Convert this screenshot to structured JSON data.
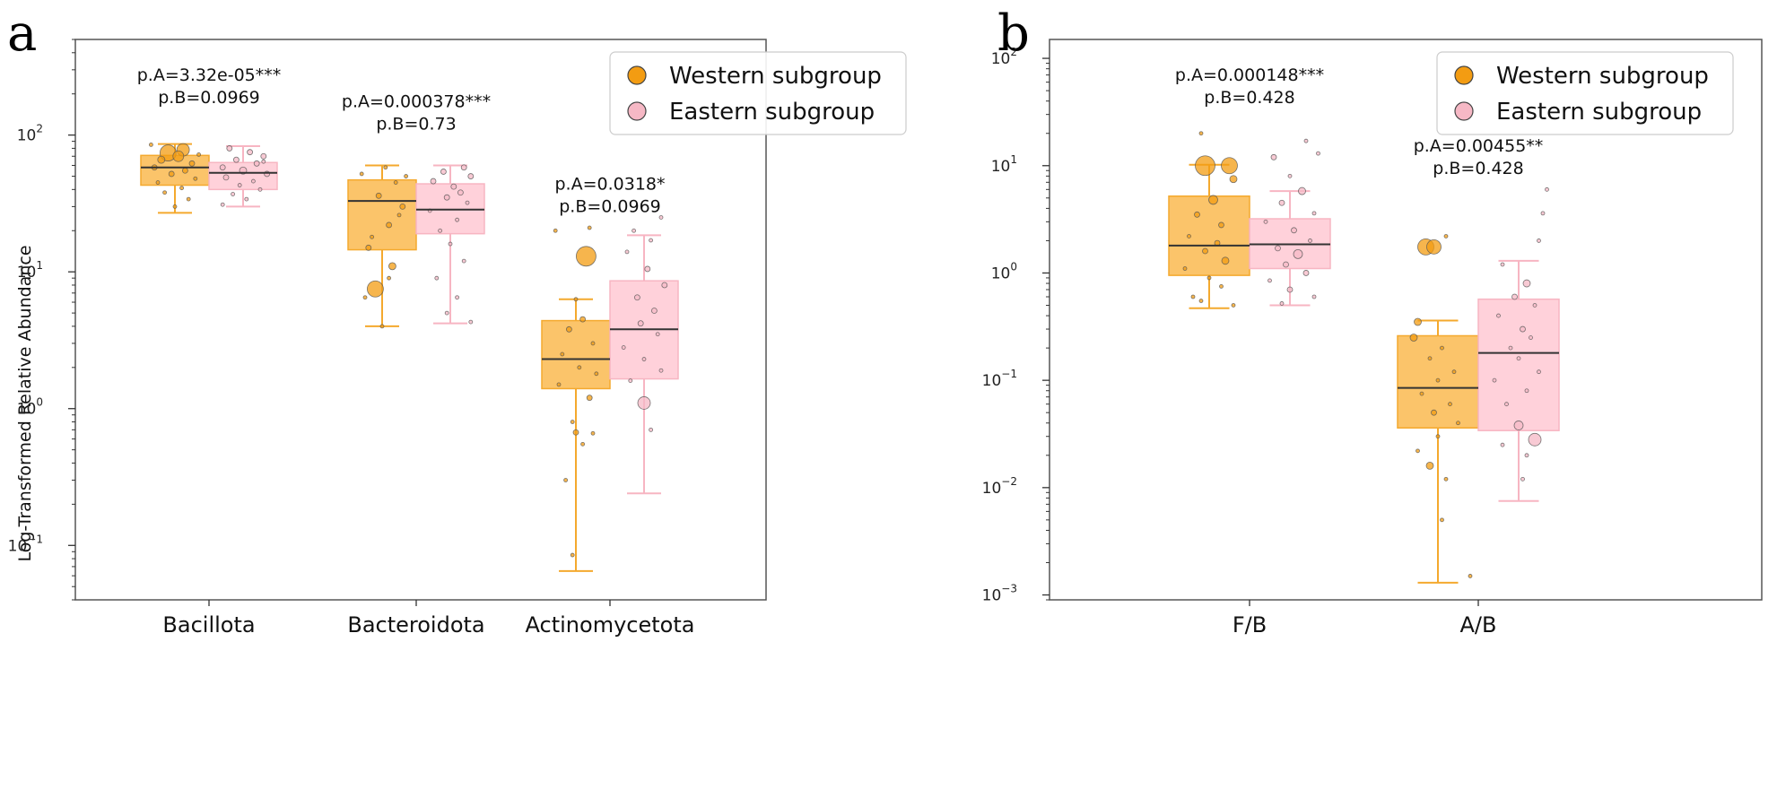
{
  "chart_data": [
    {
      "panel": "a",
      "type": "box",
      "yscale": "log",
      "ylim": [
        0.04,
        500
      ],
      "ylabel": "Log-Transformed Relative Abundance",
      "yticks": [
        {
          "v": 0.1,
          "mant": "10",
          "exp": "−1"
        },
        {
          "v": 1,
          "mant": "10",
          "exp": "0"
        },
        {
          "v": 10,
          "mant": "10",
          "exp": "1"
        },
        {
          "v": 100,
          "mant": "10",
          "exp": "2"
        }
      ],
      "categories": [
        "Bacillota",
        "Bacteroidota",
        "Actinomycetota"
      ],
      "legend": [
        "Western subgroup",
        "Eastern subgroup"
      ],
      "pvals": [
        {
          "a": "p.A=3.32e-05***",
          "b": "p.B=0.0969",
          "y": 250
        },
        {
          "a": "p.A=0.000378***",
          "b": "p.B=0.73",
          "y": 160
        },
        {
          "a": "p.A=0.0318*",
          "b": "p.B=0.0969",
          "y": 40
        }
      ],
      "boxes": [
        {
          "cat": 0,
          "grp": 0,
          "wlo": 27,
          "q1": 43,
          "med": 58,
          "q3": 71,
          "whi": 86
        },
        {
          "cat": 0,
          "grp": 1,
          "wlo": 30,
          "q1": 40,
          "med": 53,
          "q3": 63,
          "whi": 83
        },
        {
          "cat": 1,
          "grp": 0,
          "wlo": 4.0,
          "q1": 14.5,
          "med": 33,
          "q3": 47,
          "whi": 60
        },
        {
          "cat": 1,
          "grp": 1,
          "wlo": 4.2,
          "q1": 19,
          "med": 28.5,
          "q3": 44,
          "whi": 60
        },
        {
          "cat": 2,
          "grp": 0,
          "wlo": 0.065,
          "q1": 1.4,
          "med": 2.3,
          "q3": 4.4,
          "whi": 6.3
        },
        {
          "cat": 2,
          "grp": 1,
          "wlo": 0.24,
          "q1": 1.65,
          "med": 3.8,
          "q3": 8.6,
          "whi": 18.5
        }
      ],
      "points": [
        [
          0,
          0,
          0.12,
          78,
          7
        ],
        [
          0,
          0,
          -0.1,
          74,
          9
        ],
        [
          0,
          0,
          0.05,
          70,
          6
        ],
        [
          0,
          0,
          -0.2,
          66,
          4
        ],
        [
          0,
          0,
          0.25,
          62,
          3
        ],
        [
          0,
          0,
          -0.3,
          58,
          3
        ],
        [
          0,
          0,
          0.15,
          55,
          3
        ],
        [
          0,
          0,
          -0.05,
          52,
          3
        ],
        [
          0,
          0,
          0.3,
          48,
          2
        ],
        [
          0,
          0,
          -0.25,
          45,
          2
        ],
        [
          0,
          0,
          0.1,
          41,
          2
        ],
        [
          0,
          0,
          -0.15,
          38,
          2
        ],
        [
          0,
          0,
          0.2,
          34,
          2
        ],
        [
          0,
          0,
          0.0,
          30,
          2
        ],
        [
          0,
          0,
          -0.35,
          85,
          2
        ],
        [
          0,
          0,
          0.35,
          72,
          2
        ],
        [
          0,
          1,
          -0.2,
          80,
          3
        ],
        [
          0,
          1,
          0.1,
          75,
          3
        ],
        [
          0,
          1,
          0.3,
          70,
          3
        ],
        [
          0,
          1,
          -0.1,
          66,
          3
        ],
        [
          0,
          1,
          0.2,
          62,
          3
        ],
        [
          0,
          1,
          -0.3,
          58,
          3
        ],
        [
          0,
          1,
          0.0,
          55,
          4
        ],
        [
          0,
          1,
          0.35,
          52,
          3
        ],
        [
          0,
          1,
          -0.25,
          49,
          3
        ],
        [
          0,
          1,
          0.15,
          46,
          2
        ],
        [
          0,
          1,
          -0.05,
          43,
          2
        ],
        [
          0,
          1,
          0.25,
          40,
          2
        ],
        [
          0,
          1,
          -0.15,
          37,
          2
        ],
        [
          0,
          1,
          0.05,
          34,
          2
        ],
        [
          0,
          1,
          -0.3,
          31,
          2
        ],
        [
          0,
          1,
          0.3,
          64,
          2
        ],
        [
          1,
          0,
          -0.1,
          7.5,
          9
        ],
        [
          1,
          0,
          0.15,
          11,
          4
        ],
        [
          1,
          0,
          -0.2,
          15,
          3
        ],
        [
          1,
          0,
          0.1,
          22,
          3
        ],
        [
          1,
          0,
          0.3,
          30,
          3
        ],
        [
          1,
          0,
          -0.05,
          36,
          3
        ],
        [
          1,
          0,
          0.2,
          45,
          2
        ],
        [
          1,
          0,
          -0.3,
          52,
          2
        ],
        [
          1,
          0,
          0.05,
          58,
          2
        ],
        [
          1,
          0,
          0.25,
          26,
          2
        ],
        [
          1,
          0,
          -0.15,
          18,
          2
        ],
        [
          1,
          0,
          0.1,
          9,
          2
        ],
        [
          1,
          0,
          -0.25,
          6.5,
          2
        ],
        [
          1,
          0,
          0.0,
          4.0,
          2
        ],
        [
          1,
          0,
          0.35,
          50,
          2
        ],
        [
          1,
          1,
          0.2,
          58,
          3
        ],
        [
          1,
          1,
          -0.1,
          54,
          3
        ],
        [
          1,
          1,
          0.3,
          50,
          3
        ],
        [
          1,
          1,
          -0.25,
          46,
          3
        ],
        [
          1,
          1,
          0.05,
          42,
          3
        ],
        [
          1,
          1,
          0.15,
          38,
          3
        ],
        [
          1,
          1,
          -0.05,
          35,
          3
        ],
        [
          1,
          1,
          0.25,
          32,
          2
        ],
        [
          1,
          1,
          -0.3,
          28,
          2
        ],
        [
          1,
          1,
          0.1,
          24,
          2
        ],
        [
          1,
          1,
          -0.15,
          20,
          2
        ],
        [
          1,
          1,
          0.0,
          16,
          2
        ],
        [
          1,
          1,
          0.2,
          12,
          2
        ],
        [
          1,
          1,
          -0.2,
          9,
          2
        ],
        [
          1,
          1,
          0.1,
          6.5,
          2
        ],
        [
          1,
          1,
          -0.05,
          5.0,
          2
        ],
        [
          1,
          1,
          0.3,
          4.3,
          2
        ],
        [
          2,
          0,
          0.15,
          13,
          11
        ],
        [
          2,
          0,
          -0.3,
          20,
          2
        ],
        [
          2,
          0,
          0.2,
          21,
          2
        ],
        [
          2,
          0,
          0.0,
          6.3,
          2
        ],
        [
          2,
          0,
          0.1,
          4.5,
          3
        ],
        [
          2,
          0,
          -0.1,
          3.8,
          3
        ],
        [
          2,
          0,
          0.25,
          3.0,
          2
        ],
        [
          2,
          0,
          -0.2,
          2.5,
          2
        ],
        [
          2,
          0,
          0.05,
          2.0,
          2
        ],
        [
          2,
          0,
          0.3,
          1.8,
          2
        ],
        [
          2,
          0,
          -0.25,
          1.5,
          2
        ],
        [
          2,
          0,
          0.2,
          1.2,
          3
        ],
        [
          2,
          0,
          -0.05,
          0.8,
          2
        ],
        [
          2,
          0,
          0.0,
          0.67,
          3
        ],
        [
          2,
          0,
          0.1,
          0.55,
          2
        ],
        [
          2,
          0,
          -0.15,
          0.3,
          2
        ],
        [
          2,
          0,
          -0.05,
          0.085,
          2
        ],
        [
          2,
          0,
          0.25,
          0.66,
          2
        ],
        [
          2,
          1,
          -0.15,
          20,
          2
        ],
        [
          2,
          1,
          0.25,
          25,
          2
        ],
        [
          2,
          1,
          0.1,
          17,
          2
        ],
        [
          2,
          1,
          -0.25,
          14,
          2
        ],
        [
          2,
          1,
          0.05,
          10.5,
          3
        ],
        [
          2,
          1,
          0.3,
          8,
          3
        ],
        [
          2,
          1,
          -0.1,
          6.5,
          3
        ],
        [
          2,
          1,
          0.15,
          5.2,
          3
        ],
        [
          2,
          1,
          -0.05,
          4.2,
          3
        ],
        [
          2,
          1,
          0.2,
          3.5,
          2
        ],
        [
          2,
          1,
          -0.3,
          2.8,
          2
        ],
        [
          2,
          1,
          0.0,
          2.3,
          2
        ],
        [
          2,
          1,
          0.25,
          1.9,
          2
        ],
        [
          2,
          1,
          -0.2,
          1.6,
          2
        ],
        [
          2,
          1,
          0.0,
          1.1,
          7
        ],
        [
          2,
          1,
          0.1,
          0.7,
          2
        ]
      ]
    },
    {
      "panel": "b",
      "type": "box",
      "yscale": "log",
      "ylim": [
        0.0009,
        150
      ],
      "ylabel": "",
      "yticks": [
        {
          "v": 0.001,
          "mant": "10",
          "exp": "−3"
        },
        {
          "v": 0.01,
          "mant": "10",
          "exp": "−2"
        },
        {
          "v": 0.1,
          "mant": "10",
          "exp": "−1"
        },
        {
          "v": 1,
          "mant": "10",
          "exp": "0"
        },
        {
          "v": 10,
          "mant": "10",
          "exp": "1"
        },
        {
          "v": 100,
          "mant": "10",
          "exp": "2"
        }
      ],
      "categories": [
        "F/B",
        "A/B"
      ],
      "legend": [
        "Western subgroup",
        "Eastern subgroup"
      ],
      "pvals": [
        {
          "a": "p.A=0.000148***",
          "b": "p.B=0.428",
          "y": 62
        },
        {
          "a": "p.A=0.00455**",
          "b": "p.B=0.428",
          "y": 13.5
        }
      ],
      "boxes": [
        {
          "cat": 0,
          "grp": 0,
          "wlo": 0.47,
          "q1": 0.95,
          "med": 1.8,
          "q3": 5.2,
          "whi": 10.2
        },
        {
          "cat": 0,
          "grp": 1,
          "wlo": 0.5,
          "q1": 1.1,
          "med": 1.85,
          "q3": 3.2,
          "whi": 5.8
        },
        {
          "cat": 1,
          "grp": 0,
          "wlo": 0.0013,
          "q1": 0.036,
          "med": 0.085,
          "q3": 0.26,
          "whi": 0.36
        },
        {
          "cat": 1,
          "grp": 1,
          "wlo": 0.0075,
          "q1": 0.034,
          "med": 0.18,
          "q3": 0.57,
          "whi": 1.3
        }
      ],
      "points": [
        [
          0,
          0,
          -0.05,
          10,
          11
        ],
        [
          0,
          0,
          0.25,
          10,
          9
        ],
        [
          0,
          0,
          0.3,
          7.5,
          4
        ],
        [
          0,
          0,
          -0.1,
          20,
          2
        ],
        [
          0,
          0,
          0.05,
          4.8,
          5
        ],
        [
          0,
          0,
          -0.15,
          3.5,
          3
        ],
        [
          0,
          0,
          0.15,
          2.8,
          3
        ],
        [
          0,
          0,
          -0.25,
          2.2,
          2
        ],
        [
          0,
          0,
          0.1,
          1.9,
          3
        ],
        [
          0,
          0,
          -0.05,
          1.6,
          3
        ],
        [
          0,
          0,
          0.2,
          1.3,
          4
        ],
        [
          0,
          0,
          -0.3,
          1.1,
          2
        ],
        [
          0,
          0,
          0.0,
          0.9,
          2
        ],
        [
          0,
          0,
          0.15,
          0.75,
          2
        ],
        [
          0,
          0,
          -0.2,
          0.6,
          2
        ],
        [
          0,
          0,
          0.3,
          0.5,
          2
        ],
        [
          0,
          0,
          -0.1,
          0.55,
          2
        ],
        [
          0,
          1,
          0.2,
          17,
          2
        ],
        [
          0,
          1,
          -0.2,
          12,
          3
        ],
        [
          0,
          1,
          0.35,
          13,
          2
        ],
        [
          0,
          1,
          0.0,
          8,
          2
        ],
        [
          0,
          1,
          0.15,
          5.8,
          4
        ],
        [
          0,
          1,
          -0.1,
          4.5,
          3
        ],
        [
          0,
          1,
          0.3,
          3.6,
          2
        ],
        [
          0,
          1,
          -0.3,
          3.0,
          2
        ],
        [
          0,
          1,
          0.05,
          2.5,
          3
        ],
        [
          0,
          1,
          0.25,
          2.0,
          2
        ],
        [
          0,
          1,
          -0.15,
          1.7,
          3
        ],
        [
          0,
          1,
          0.1,
          1.5,
          5
        ],
        [
          0,
          1,
          -0.05,
          1.2,
          3
        ],
        [
          0,
          1,
          0.2,
          1.0,
          3
        ],
        [
          0,
          1,
          -0.25,
          0.85,
          2
        ],
        [
          0,
          1,
          0.0,
          0.7,
          3
        ],
        [
          0,
          1,
          0.3,
          0.6,
          2
        ],
        [
          0,
          1,
          -0.1,
          0.52,
          2
        ],
        [
          1,
          0,
          -0.15,
          1.75,
          9
        ],
        [
          1,
          0,
          -0.05,
          1.75,
          8
        ],
        [
          1,
          0,
          0.1,
          2.2,
          2
        ],
        [
          1,
          0,
          -0.25,
          0.35,
          4
        ],
        [
          1,
          0,
          -0.3,
          0.25,
          4
        ],
        [
          1,
          0,
          0.05,
          0.2,
          2
        ],
        [
          1,
          0,
          -0.1,
          0.16,
          2
        ],
        [
          1,
          0,
          0.2,
          0.12,
          2
        ],
        [
          1,
          0,
          0.0,
          0.1,
          2
        ],
        [
          1,
          0,
          -0.2,
          0.075,
          2
        ],
        [
          1,
          0,
          0.15,
          0.06,
          2
        ],
        [
          1,
          0,
          -0.05,
          0.05,
          3
        ],
        [
          1,
          0,
          0.25,
          0.04,
          2
        ],
        [
          1,
          0,
          0.0,
          0.03,
          2
        ],
        [
          1,
          0,
          -0.25,
          0.022,
          2
        ],
        [
          1,
          0,
          -0.1,
          0.016,
          4
        ],
        [
          1,
          0,
          0.1,
          0.012,
          2
        ],
        [
          1,
          0,
          0.05,
          0.005,
          2
        ],
        [
          1,
          0,
          0.4,
          0.0015,
          2
        ],
        [
          1,
          1,
          0.35,
          6,
          2
        ],
        [
          1,
          1,
          0.3,
          3.6,
          2
        ],
        [
          1,
          1,
          0.25,
          2.0,
          2
        ],
        [
          1,
          1,
          -0.2,
          1.2,
          2
        ],
        [
          1,
          1,
          0.1,
          0.8,
          4
        ],
        [
          1,
          1,
          -0.05,
          0.6,
          3
        ],
        [
          1,
          1,
          0.2,
          0.5,
          2
        ],
        [
          1,
          1,
          -0.25,
          0.4,
          2
        ],
        [
          1,
          1,
          0.05,
          0.3,
          3
        ],
        [
          1,
          1,
          0.15,
          0.25,
          2
        ],
        [
          1,
          1,
          -0.1,
          0.2,
          2
        ],
        [
          1,
          1,
          0.0,
          0.16,
          2
        ],
        [
          1,
          1,
          0.25,
          0.12,
          2
        ],
        [
          1,
          1,
          -0.3,
          0.1,
          2
        ],
        [
          1,
          1,
          0.1,
          0.08,
          2
        ],
        [
          1,
          1,
          -0.15,
          0.06,
          2
        ],
        [
          1,
          1,
          0.0,
          0.038,
          5
        ],
        [
          1,
          1,
          0.2,
          0.028,
          7
        ],
        [
          1,
          1,
          -0.2,
          0.025,
          2
        ],
        [
          1,
          1,
          0.1,
          0.02,
          2
        ],
        [
          1,
          1,
          0.05,
          0.012,
          2
        ]
      ]
    }
  ],
  "colors": {
    "western_face": "#fbc46a",
    "western_line": "#f4a92e",
    "western_dot": "#f39c12",
    "eastern_face": "#ffd1da",
    "eastern_line": "#f7b5c2",
    "eastern_dot": "#f6b8c5",
    "median": "#333333",
    "frame": "#555555"
  }
}
